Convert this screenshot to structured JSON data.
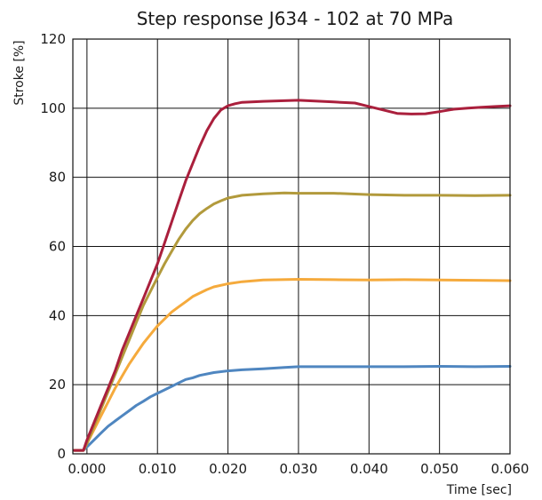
{
  "chart_data": {
    "type": "line",
    "title": "Step response J634 - 102 at 70 MPa",
    "xlabel": "Time [sec]",
    "ylabel": "Stroke [%]",
    "xlim": [
      -0.002,
      0.06
    ],
    "ylim": [
      0,
      120
    ],
    "x_ticks": [
      "0.000",
      "0.010",
      "0.020",
      "0.030",
      "0.040",
      "0.050",
      "0.060"
    ],
    "x_tick_values": [
      0,
      0.01,
      0.02,
      0.03,
      0.04,
      0.05,
      0.06
    ],
    "y_ticks": [
      "0",
      "20",
      "40",
      "60",
      "80",
      "100",
      "120"
    ],
    "y_tick_values": [
      0,
      20,
      40,
      60,
      80,
      100,
      120
    ],
    "grid": true,
    "series": [
      {
        "color": "#4f86c0",
        "points": [
          [
            -0.0018,
            1
          ],
          [
            -0.0005,
            1
          ],
          [
            0.0,
            2
          ],
          [
            0.001,
            4
          ],
          [
            0.002,
            6
          ],
          [
            0.003,
            8
          ],
          [
            0.004,
            9.5
          ],
          [
            0.005,
            11
          ],
          [
            0.006,
            12.5
          ],
          [
            0.007,
            14
          ],
          [
            0.008,
            15.2
          ],
          [
            0.009,
            16.5
          ],
          [
            0.01,
            17.5
          ],
          [
            0.011,
            18.5
          ],
          [
            0.012,
            19.5
          ],
          [
            0.013,
            20.5
          ],
          [
            0.014,
            21.5
          ],
          [
            0.015,
            22
          ],
          [
            0.016,
            22.7
          ],
          [
            0.018,
            23.5
          ],
          [
            0.02,
            24
          ],
          [
            0.022,
            24.3
          ],
          [
            0.025,
            24.6
          ],
          [
            0.028,
            25
          ],
          [
            0.03,
            25.2
          ],
          [
            0.035,
            25.2
          ],
          [
            0.04,
            25.2
          ],
          [
            0.045,
            25.2
          ],
          [
            0.05,
            25.3
          ],
          [
            0.055,
            25.2
          ],
          [
            0.06,
            25.3
          ]
        ]
      },
      {
        "color": "#f5aa3c",
        "points": [
          [
            -0.0018,
            1
          ],
          [
            -0.0005,
            1
          ],
          [
            0.0,
            3
          ],
          [
            0.001,
            7
          ],
          [
            0.002,
            11
          ],
          [
            0.003,
            15
          ],
          [
            0.004,
            19
          ],
          [
            0.005,
            22.5
          ],
          [
            0.006,
            26
          ],
          [
            0.007,
            29
          ],
          [
            0.008,
            32
          ],
          [
            0.009,
            34.5
          ],
          [
            0.01,
            37
          ],
          [
            0.011,
            39
          ],
          [
            0.012,
            41
          ],
          [
            0.013,
            42.5
          ],
          [
            0.014,
            44
          ],
          [
            0.015,
            45.5
          ],
          [
            0.016,
            46.5
          ],
          [
            0.017,
            47.5
          ],
          [
            0.018,
            48.3
          ],
          [
            0.02,
            49.2
          ],
          [
            0.022,
            49.8
          ],
          [
            0.025,
            50.3
          ],
          [
            0.03,
            50.5
          ],
          [
            0.035,
            50.4
          ],
          [
            0.04,
            50.3
          ],
          [
            0.045,
            50.4
          ],
          [
            0.05,
            50.3
          ],
          [
            0.055,
            50.2
          ],
          [
            0.06,
            50.1
          ]
        ]
      },
      {
        "color": "#b29a3c",
        "points": [
          [
            -0.0018,
            1
          ],
          [
            -0.0005,
            1
          ],
          [
            0.0,
            3
          ],
          [
            0.001,
            8
          ],
          [
            0.002,
            13
          ],
          [
            0.003,
            18
          ],
          [
            0.004,
            23
          ],
          [
            0.005,
            28
          ],
          [
            0.006,
            33
          ],
          [
            0.007,
            38
          ],
          [
            0.008,
            43
          ],
          [
            0.009,
            47
          ],
          [
            0.01,
            51
          ],
          [
            0.011,
            55
          ],
          [
            0.012,
            58.5
          ],
          [
            0.013,
            62
          ],
          [
            0.014,
            65
          ],
          [
            0.015,
            67.5
          ],
          [
            0.016,
            69.5
          ],
          [
            0.017,
            71
          ],
          [
            0.018,
            72.3
          ],
          [
            0.019,
            73.2
          ],
          [
            0.02,
            74
          ],
          [
            0.022,
            74.8
          ],
          [
            0.025,
            75.2
          ],
          [
            0.028,
            75.5
          ],
          [
            0.03,
            75.4
          ],
          [
            0.035,
            75.4
          ],
          [
            0.04,
            75
          ],
          [
            0.045,
            74.8
          ],
          [
            0.05,
            74.8
          ],
          [
            0.055,
            74.7
          ],
          [
            0.06,
            74.8
          ]
        ]
      },
      {
        "color": "#aa1f3c",
        "points": [
          [
            -0.0018,
            1
          ],
          [
            -0.0005,
            1
          ],
          [
            0.0,
            4
          ],
          [
            0.001,
            9
          ],
          [
            0.002,
            14
          ],
          [
            0.003,
            19
          ],
          [
            0.004,
            24
          ],
          [
            0.005,
            30
          ],
          [
            0.006,
            35
          ],
          [
            0.007,
            40
          ],
          [
            0.008,
            45
          ],
          [
            0.009,
            50
          ],
          [
            0.01,
            55
          ],
          [
            0.011,
            61
          ],
          [
            0.012,
            67
          ],
          [
            0.013,
            73
          ],
          [
            0.014,
            79
          ],
          [
            0.015,
            84
          ],
          [
            0.016,
            89
          ],
          [
            0.017,
            93.5
          ],
          [
            0.018,
            97
          ],
          [
            0.019,
            99.5
          ],
          [
            0.02,
            100.7
          ],
          [
            0.021,
            101.3
          ],
          [
            0.022,
            101.7
          ],
          [
            0.025,
            102
          ],
          [
            0.03,
            102.3
          ],
          [
            0.035,
            101.8
          ],
          [
            0.038,
            101.5
          ],
          [
            0.04,
            100.5
          ],
          [
            0.042,
            99.5
          ],
          [
            0.044,
            98.5
          ],
          [
            0.046,
            98.3
          ],
          [
            0.048,
            98.4
          ],
          [
            0.05,
            99
          ],
          [
            0.052,
            99.7
          ],
          [
            0.054,
            100
          ],
          [
            0.056,
            100.3
          ],
          [
            0.058,
            100.5
          ],
          [
            0.06,
            100.7
          ]
        ]
      }
    ]
  }
}
